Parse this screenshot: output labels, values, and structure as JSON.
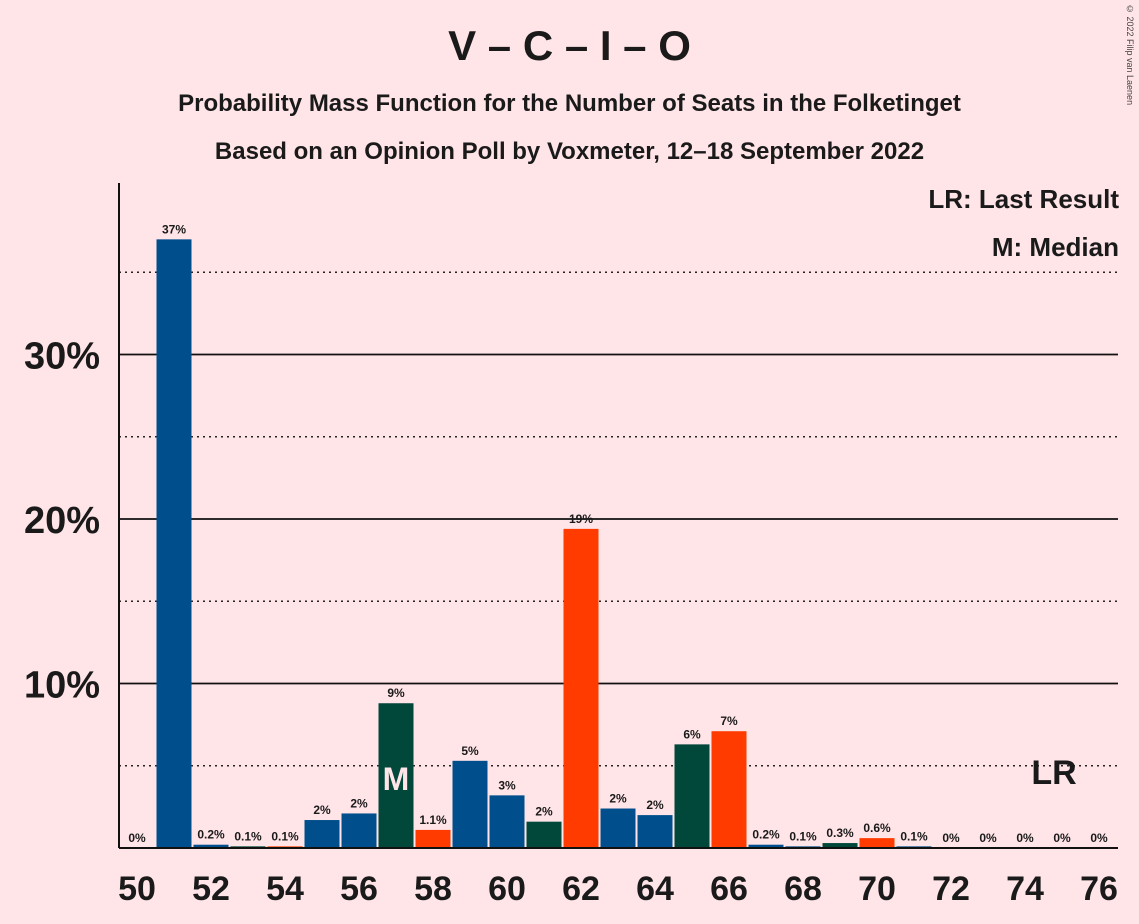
{
  "title": "V – C – I – O",
  "subtitle1": "Probability Mass Function for the Number of Seats in the Folketinget",
  "subtitle2": "Based on an Opinion Poll by Voxmeter, 12–18 September 2022",
  "copyright": "© 2022 Filip van Laenen",
  "legend": {
    "last_result": "LR: Last Result",
    "median": "M: Median"
  },
  "colors": {
    "background": "#FFE4E8",
    "blue": "#004F8C",
    "green": "#01473A",
    "red": "#FF3B00"
  },
  "chart_data": {
    "type": "bar",
    "xlabel": "",
    "ylabel": "",
    "x": [
      50,
      51,
      52,
      53,
      54,
      55,
      56,
      57,
      58,
      59,
      60,
      61,
      62,
      63,
      64,
      65,
      66,
      67,
      68,
      69,
      70,
      71,
      72,
      73,
      74,
      75,
      76
    ],
    "values": [
      0,
      37,
      0.2,
      0.1,
      0.1,
      1.7,
      2.1,
      8.8,
      1.1,
      5.3,
      3.2,
      1.6,
      19.4,
      2.4,
      2.0,
      6.3,
      7.1,
      0.2,
      0.1,
      0.3,
      0.6,
      0.1,
      0,
      0,
      0,
      0,
      0
    ],
    "data_labels": [
      "0%",
      "37%",
      "0.2%",
      "0.1%",
      "0.1%",
      "2%",
      "2%",
      "9%",
      "1.1%",
      "5%",
      "3%",
      "2%",
      "19%",
      "2%",
      "2%",
      "6%",
      "7%",
      "0.2%",
      "0.1%",
      "0.3%",
      "0.6%",
      "0.1%",
      "0%",
      "0%",
      "0%",
      "0%",
      "0%"
    ],
    "bar_colors": [
      "blue",
      "blue",
      "blue",
      "green",
      "red",
      "blue",
      "blue",
      "green",
      "red",
      "blue",
      "blue",
      "green",
      "red",
      "blue",
      "blue",
      "green",
      "red",
      "blue",
      "blue",
      "green",
      "red",
      "blue",
      "blue",
      "green",
      "red",
      "blue",
      "blue"
    ],
    "x_tick_labels": [
      "50",
      "52",
      "54",
      "56",
      "58",
      "60",
      "62",
      "64",
      "66",
      "68",
      "70",
      "72",
      "74",
      "76"
    ],
    "x_ticks": [
      50,
      52,
      54,
      56,
      58,
      60,
      62,
      64,
      66,
      68,
      70,
      72,
      74,
      76
    ],
    "y_ticks": [
      10,
      20,
      30
    ],
    "y_tick_labels": [
      "10%",
      "20%",
      "30%"
    ],
    "dotted_lines": [
      5,
      15,
      25,
      35
    ],
    "ylim": [
      0,
      40
    ],
    "median": 57,
    "median_label": "M",
    "last_result": 75,
    "last_result_label": "LR"
  }
}
